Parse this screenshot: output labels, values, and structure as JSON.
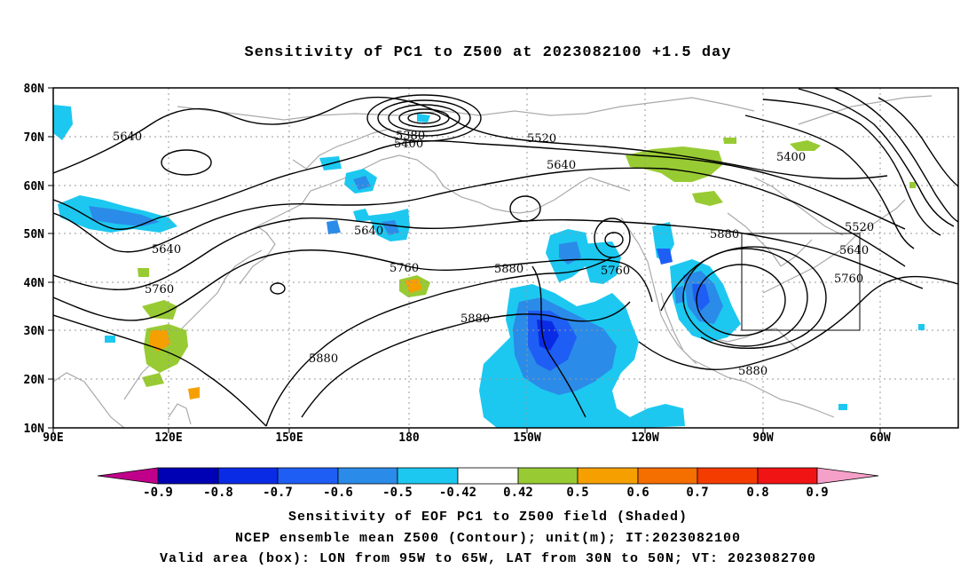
{
  "title": "Sensitivity of PC1 to Z500 at 2023082100 +1.5 day",
  "lat_labels": [
    "80N",
    "70N",
    "60N",
    "50N",
    "40N",
    "30N",
    "20N",
    "10N"
  ],
  "lon_labels": [
    "90E",
    "120E",
    "150E",
    "180",
    "150W",
    "120W",
    "90W",
    "60W"
  ],
  "contour_labels": [
    "5640",
    "5380",
    "5400",
    "5520",
    "5640",
    "5400",
    "5640",
    "5640",
    "5760",
    "5880",
    "5760",
    "5880",
    "5520",
    "5640",
    "5760",
    "5760",
    "5880",
    "5880",
    "5880"
  ],
  "colorbar": {
    "labels": [
      "-0.9",
      "-0.8",
      "-0.7",
      "-0.6",
      "-0.5",
      "-0.42",
      "0.42",
      "0.5",
      "0.6",
      "0.7",
      "0.8",
      "0.9"
    ],
    "colors": [
      "#c0008a",
      "#0000b4",
      "#0a2be6",
      "#1e5ef5",
      "#2b8be8",
      "#1cc8f0",
      "#ffffff",
      "#98cb33",
      "#f5a000",
      "#f56e00",
      "#f53c00",
      "#f01414",
      "#f5a0c8"
    ]
  },
  "captions": {
    "line1": "Sensitivity of EOF PC1 to Z500 field (Shaded)",
    "line2": "NCEP ensemble mean Z500 (Contour); unit(m); IT:2023082100",
    "line3": "Valid area (box): LON from 95W to 65W, LAT from 30N to 50N; VT: 2023082700"
  }
}
